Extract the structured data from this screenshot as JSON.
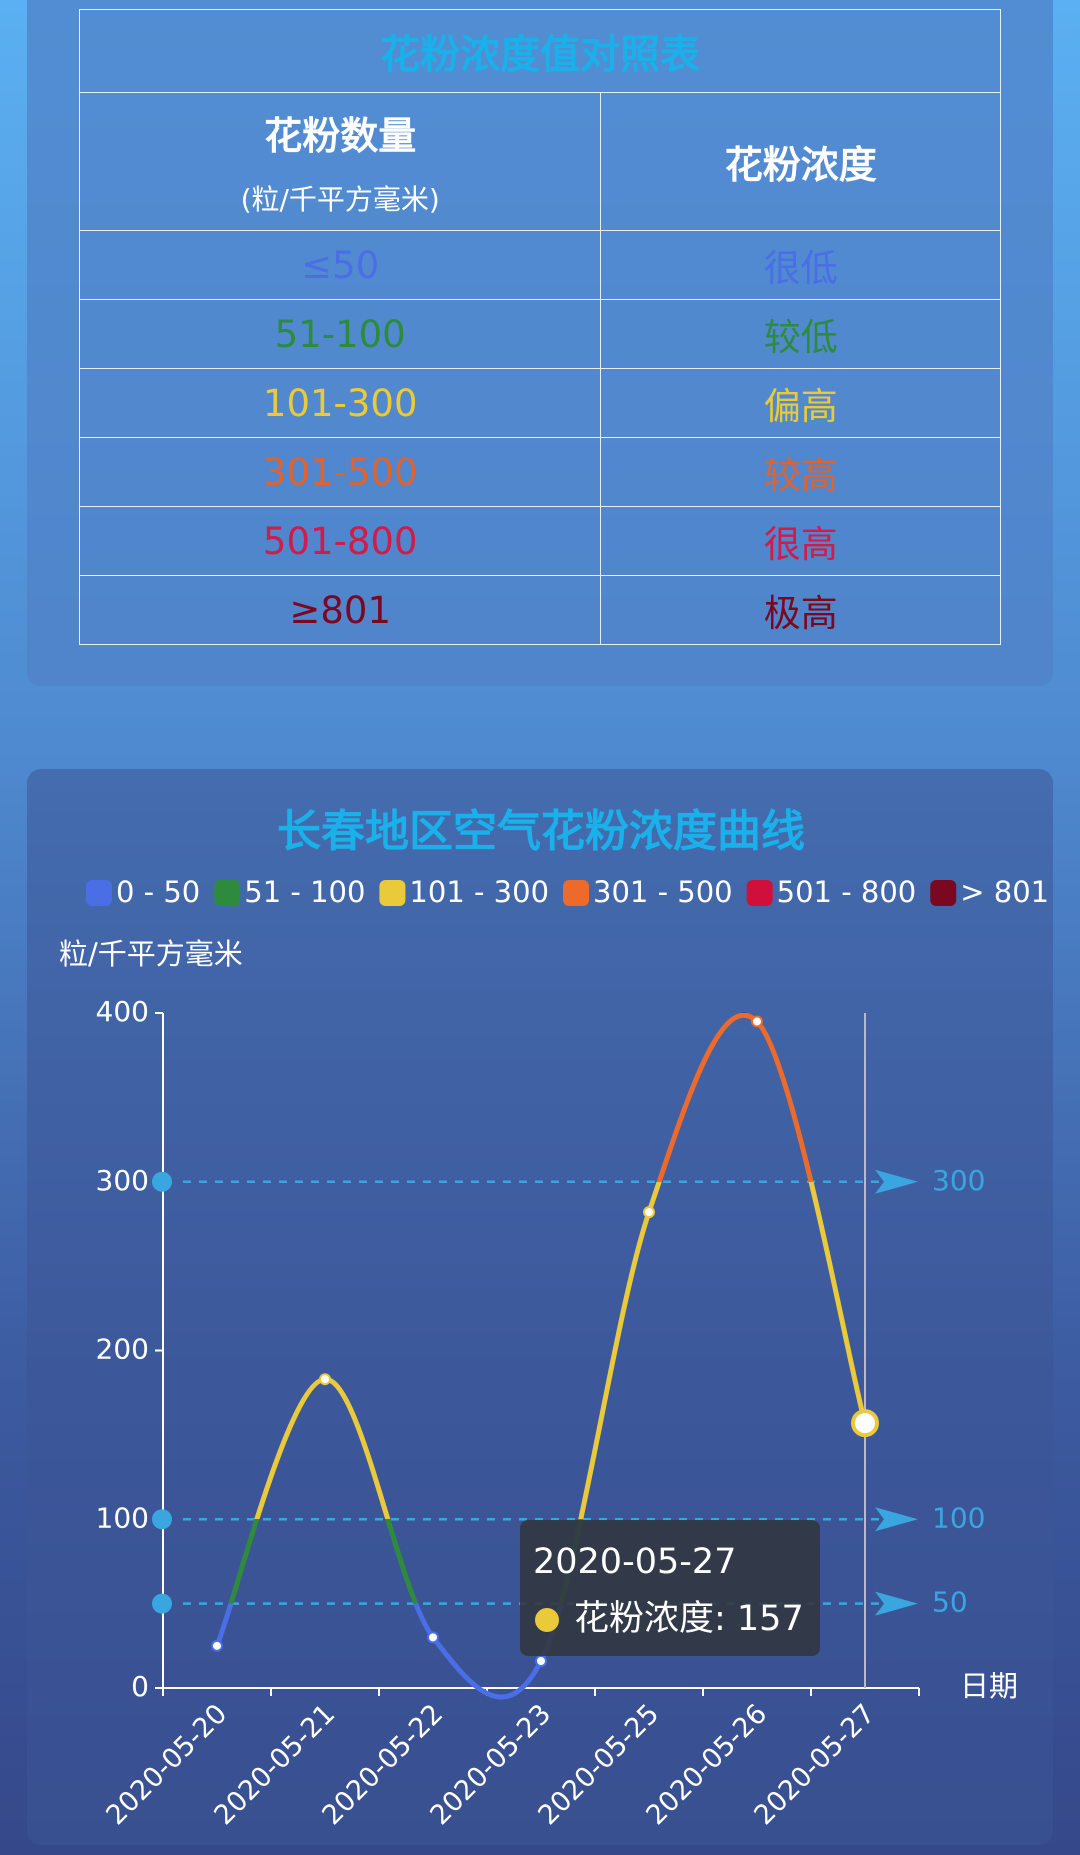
{
  "table": {
    "title": "花粉浓度值对照表",
    "header": {
      "count": "花粉数量",
      "unit": "(粒/千平方毫米)",
      "level": "花粉浓度"
    },
    "rows": [
      {
        "range": "≤50",
        "level": "很低",
        "color": "#4a6ee6"
      },
      {
        "range": "51-100",
        "level": "较低",
        "color": "#2e8b3e"
      },
      {
        "range": "101-300",
        "level": "偏高",
        "color": "#eac93a"
      },
      {
        "range": "301-500",
        "level": "较高",
        "color": "#e0622c"
      },
      {
        "range": "501-800",
        "level": "很高",
        "color": "#d01c48"
      },
      {
        "range": "≥801",
        "level": "极高",
        "color": "#7a0820"
      }
    ]
  },
  "chart_data": {
    "type": "line",
    "title": "长春地区空气花粉浓度曲线",
    "y_label": "粒/千平方毫米",
    "x_label": "日期",
    "categories": [
      "2020-05-20",
      "2020-05-21",
      "2020-05-22",
      "2020-05-23",
      "2020-05-25",
      "2020-05-26",
      "2020-05-27"
    ],
    "series": [
      {
        "name": "花粉浓度",
        "values": [
          25,
          183,
          30,
          16,
          282,
          395,
          157
        ]
      }
    ],
    "pieces": [
      {
        "label": "0 - 50",
        "min": 0,
        "max": 50,
        "color": "#4a6ee6"
      },
      {
        "label": "51 - 100",
        "min": 50,
        "max": 100,
        "color": "#2e8b3e"
      },
      {
        "label": "101 - 300",
        "min": 100,
        "max": 300,
        "color": "#eac93a"
      },
      {
        "label": "301 - 500",
        "min": 300,
        "max": 500,
        "color": "#ee6a2a"
      },
      {
        "label": "501 - 800",
        "min": 500,
        "max": 800,
        "color": "#d0103a"
      },
      {
        "label": "> 801",
        "min": 800,
        "max": 1000,
        "color": "#7a0820"
      }
    ],
    "mark_lines": [
      300,
      100,
      50
    ],
    "ylim": [
      0,
      400
    ],
    "yticks": [
      0,
      100,
      200,
      300,
      400
    ],
    "tooltip": {
      "title": "2020-05-27",
      "label": "花粉浓度: 157",
      "index": 6
    }
  }
}
